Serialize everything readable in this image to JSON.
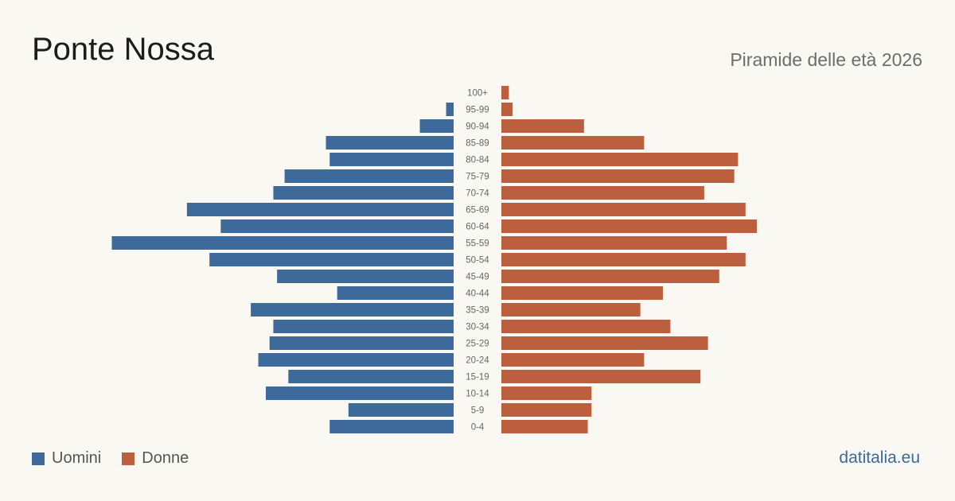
{
  "header": {
    "title": "Ponte Nossa",
    "subtitle": "Piramide delle età 2026"
  },
  "legend": {
    "men_label": "Uomini",
    "women_label": "Donne"
  },
  "brand": "datitalia.eu",
  "colors": {
    "men": "#3d6a9b",
    "women": "#bb5f3e",
    "background": "#faf8f3"
  },
  "chart_data": {
    "type": "bar",
    "orientation": "horizontal-pyramid",
    "title": "",
    "xlabel": "",
    "ylabel": "",
    "categories": [
      "100+",
      "95-99",
      "90-94",
      "85-89",
      "80-84",
      "75-79",
      "70-74",
      "65-69",
      "60-64",
      "55-59",
      "50-54",
      "45-49",
      "40-44",
      "35-39",
      "30-34",
      "25-29",
      "20-24",
      "15-19",
      "10-14",
      "5-9",
      "0-4"
    ],
    "series": [
      {
        "name": "Uomini",
        "values": [
          0,
          2,
          9,
          34,
          33,
          45,
          48,
          71,
          62,
          91,
          65,
          47,
          31,
          54,
          48,
          49,
          52,
          44,
          50,
          28,
          33
        ]
      },
      {
        "name": "Donne",
        "values": [
          2,
          3,
          22,
          38,
          63,
          62,
          54,
          65,
          68,
          60,
          65,
          58,
          43,
          37,
          45,
          55,
          38,
          53,
          24,
          24,
          23
        ]
      }
    ],
    "legend_position": "bottom-left",
    "grid": false
  }
}
